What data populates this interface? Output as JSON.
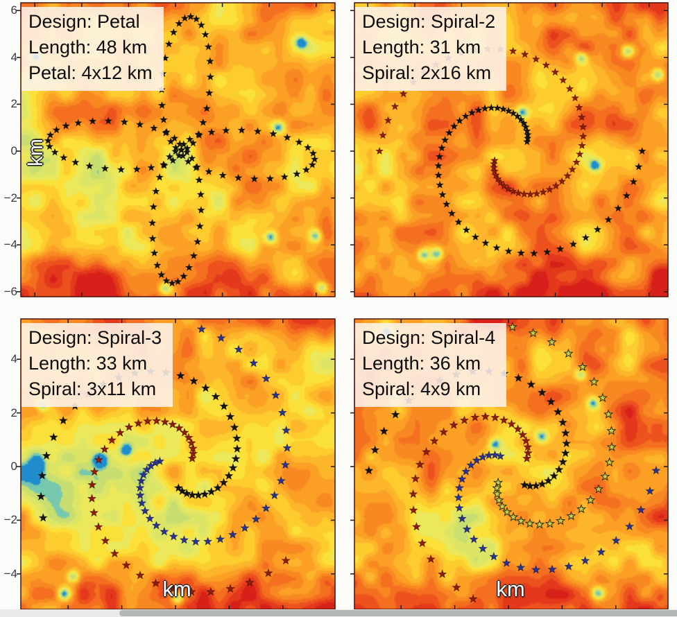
{
  "panels": [
    {
      "key": "petal",
      "box_lines": [
        "Design: Petal",
        "Length: 48 km",
        "Petal: 4x12 km"
      ],
      "design": "Petal",
      "length_km": 48,
      "element_spec": "4x12 km",
      "ylabel": "km",
      "ytick_labels": [
        "6",
        "4",
        "2",
        "0",
        "−2",
        "−4",
        "−6"
      ],
      "ytick_values": [
        6,
        4,
        2,
        0,
        -2,
        -4,
        -6
      ]
    },
    {
      "key": "spiral-2",
      "box_lines": [
        "Design: Spiral-2",
        "Length: 31 km",
        "Spiral: 2x16 km"
      ],
      "design": "Spiral-2",
      "length_km": 31,
      "element_spec": "2x16 km",
      "ytick_labels": [],
      "ytick_values": []
    },
    {
      "key": "spiral-3",
      "box_lines": [
        "Design: Spiral-3",
        "Length: 33 km",
        "Spiral: 3x11 km"
      ],
      "design": "Spiral-3",
      "length_km": 33,
      "element_spec": "3x11 km",
      "xlabel": "km",
      "ytick_labels": [
        "4",
        "2",
        "0",
        "−2",
        "−4"
      ],
      "ytick_values": [
        4,
        2,
        0,
        -2,
        -4
      ]
    },
    {
      "key": "spiral-4",
      "box_lines": [
        "Design: Spiral-4",
        "Length: 36 km",
        "Spiral: 4x9 km"
      ],
      "design": "Spiral-4",
      "length_km": 36,
      "element_spec": "4x9 km",
      "xlabel": "km",
      "ytick_labels": [],
      "ytick_values": []
    }
  ],
  "colors": {
    "star_black": "#141414",
    "star_maroon": "#8e1d0d",
    "star_navy": "#293490",
    "star_olive": "#c9ce52",
    "label_box_bg": "#fdf2eb",
    "heat_red": "#d72019",
    "heat_orange": "#f89823",
    "heat_yellow": "#fede32",
    "heat_green": "#cde06e",
    "heat_cyan": "#50bed7",
    "scrollbar_track": "#e9eaea",
    "scrollbar_thumb": "#b4b7b7"
  },
  "chart_data": [
    {
      "type": "heatmap",
      "subplot": "top-left",
      "annotations": [
        "Design: Petal",
        "Length: 48 km",
        "Petal: 4x12 km"
      ],
      "overlay": {
        "design": "Petal",
        "total_length_km": 48,
        "elements": 4,
        "element_length_km": 12,
        "marker": "star",
        "arm_colors": [
          "black"
        ]
      },
      "ylabel": "km",
      "xlabel": "",
      "yticks": [
        6,
        4,
        2,
        0,
        -2,
        -4,
        -6
      ],
      "ylim": [
        -6.3,
        6.3
      ],
      "xlim": [
        -6.6,
        6.8
      ],
      "grid": false,
      "background": "smooth scalar field, yellow-orange-red colormap with sparse cyan minima"
    },
    {
      "type": "heatmap",
      "subplot": "top-right",
      "annotations": [
        "Design: Spiral-2",
        "Length: 31 km",
        "Spiral: 2x16 km"
      ],
      "overlay": {
        "design": "Spiral-2",
        "total_length_km": 31,
        "elements": 2,
        "element_length_km": 16,
        "marker": "star",
        "arm_colors": [
          "black",
          "dark-red"
        ]
      },
      "ylabel": "",
      "xlabel": "",
      "yticks": [],
      "ylim": [
        -6.3,
        6.3
      ],
      "xlim": [
        -6.6,
        6.8
      ],
      "grid": false,
      "background": "smooth scalar field, orange-red colormap"
    },
    {
      "type": "heatmap",
      "subplot": "bottom-left",
      "annotations": [
        "Design: Spiral-3",
        "Length: 33 km",
        "Spiral: 3x11 km"
      ],
      "overlay": {
        "design": "Spiral-3",
        "total_length_km": 33,
        "elements": 3,
        "element_length_km": 11,
        "marker": "star",
        "arm_colors": [
          "black",
          "dark-red",
          "navy"
        ]
      },
      "ylabel": "",
      "xlabel": "km",
      "yticks": [
        4,
        2,
        0,
        -2,
        -4
      ],
      "ylim": [
        -5.3,
        5.6
      ],
      "xlim": [
        -5.85,
        5.85
      ],
      "grid": false,
      "background": "smooth scalar field, yellow-orange-red colormap with sparse cyan minima"
    },
    {
      "type": "heatmap",
      "subplot": "bottom-right",
      "annotations": [
        "Design: Spiral-4",
        "Length: 36 km",
        "Spiral: 4x9 km"
      ],
      "overlay": {
        "design": "Spiral-4",
        "total_length_km": 36,
        "elements": 4,
        "element_length_km": 9,
        "marker": "star",
        "arm_colors": [
          "black",
          "dark-red",
          "navy",
          "olive"
        ]
      },
      "ylabel": "",
      "xlabel": "km",
      "yticks": [],
      "ylim": [
        -5.3,
        5.6
      ],
      "xlim": [
        -5.85,
        5.85
      ],
      "grid": false,
      "background": "smooth scalar field, orange-red colormap"
    }
  ]
}
